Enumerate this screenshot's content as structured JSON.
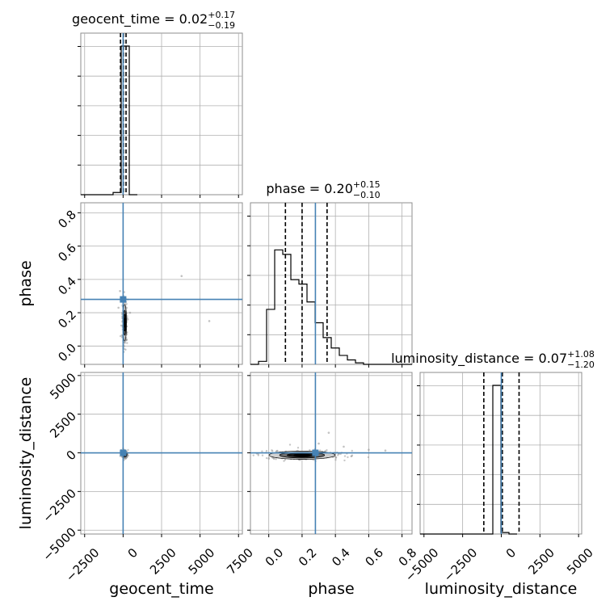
{
  "chart_data": {
    "type": "corner",
    "parameters": [
      "geocent_time",
      "phase",
      "luminosity_distance"
    ],
    "truth": {
      "geocent_time": 0,
      "phase": 0.28,
      "luminosity_distance": 0
    },
    "titles": [
      {
        "param": "geocent_time",
        "base": "geocent_time = 0.02",
        "sup": "+0.17",
        "sub": "−0.19"
      },
      {
        "param": "phase",
        "base": "phase = 0.20",
        "sup": "+0.15",
        "sub": "−0.10"
      },
      {
        "param": "luminosity_distance",
        "base": "luminosity_distance = 0.07",
        "sup": "+1.08",
        "sub": "−1.20"
      }
    ],
    "axes": {
      "geocent_time": {
        "range": [
          -2750,
          7750
        ],
        "ticks": [
          -2500,
          0,
          2500,
          5000,
          7500
        ],
        "tick_labels": [
          "−2500",
          "0",
          "2500",
          "5000",
          "7500"
        ]
      },
      "phase": {
        "range": [
          -0.11,
          0.86
        ],
        "ticks": [
          0.0,
          0.2,
          0.4,
          0.6,
          0.8
        ],
        "tick_labels": [
          "0.0",
          "0.2",
          "0.4",
          "0.6",
          "0.8"
        ]
      },
      "luminosity_distance": {
        "range": [
          -5250,
          5200
        ],
        "ticks": [
          -5000,
          -2500,
          0,
          2500,
          5000
        ],
        "tick_labels": [
          "−5000",
          "−2500",
          "0",
          "2500",
          "5000"
        ]
      }
    },
    "histograms": {
      "geocent_time": {
        "edges": [
          -2750,
          -2225,
          -1700,
          -1175,
          -650,
          -125,
          400,
          925
        ],
        "counts": [
          0,
          0,
          0,
          0,
          0.015,
          1.0,
          0
        ],
        "quantiles": [
          -170,
          20,
          190
        ]
      },
      "phase": {
        "edges": [
          -0.11,
          -0.0615,
          -0.013,
          0.0355,
          0.084,
          0.1325,
          0.181,
          0.2295,
          0.278,
          0.3265,
          0.375,
          0.4235,
          0.472,
          0.5205,
          0.569,
          0.6175,
          0.666,
          0.7145,
          0.763,
          0.8115,
          0.86
        ],
        "counts": [
          0,
          0.02,
          0.37,
          0.77,
          0.74,
          0.57,
          0.54,
          0.42,
          0.28,
          0.18,
          0.11,
          0.06,
          0.03,
          0.01,
          0,
          0,
          0,
          0,
          0,
          0
        ],
        "quantiles": [
          0.1,
          0.2,
          0.35
        ]
      },
      "luminosity_distance": {
        "edges": [
          -5250,
          -4727.5,
          -4205,
          -3682.5,
          -3160,
          -2637.5,
          -2115,
          -1592.5,
          -1070,
          -547.5,
          -25,
          497.5,
          1020
        ],
        "counts": [
          0,
          0,
          0,
          0,
          0,
          0,
          0,
          0,
          0,
          1.0,
          0.01,
          0
        ],
        "quantiles": [
          -1130,
          70,
          1150
        ]
      }
    },
    "joint": [
      {
        "x": "geocent_time",
        "y": "phase",
        "center": [
          100,
          0.14
        ],
        "spread": [
          55,
          0.05
        ],
        "outliers": [
          [
            -200,
            0.33
          ],
          [
            3800,
            0.42
          ],
          [
            5600,
            0.15
          ],
          [
            -300,
            0.23
          ],
          [
            450,
            0.2
          ]
        ]
      },
      {
        "x": "geocent_time",
        "y": "luminosity_distance",
        "center": [
          100,
          -100
        ],
        "spread": [
          70,
          80
        ],
        "outliers": []
      },
      {
        "x": "phase",
        "y": "luminosity_distance",
        "center": [
          0.2,
          -150
        ],
        "spread": [
          0.09,
          120
        ],
        "outliers": [
          [
            0.36,
            1300
          ],
          [
            0.3,
            600
          ],
          [
            0.45,
            400
          ],
          [
            0.6,
            200
          ],
          [
            0.7,
            150
          ]
        ]
      }
    ],
    "grid": true,
    "truth_color": "#4682b4",
    "line_color": "#000000"
  }
}
